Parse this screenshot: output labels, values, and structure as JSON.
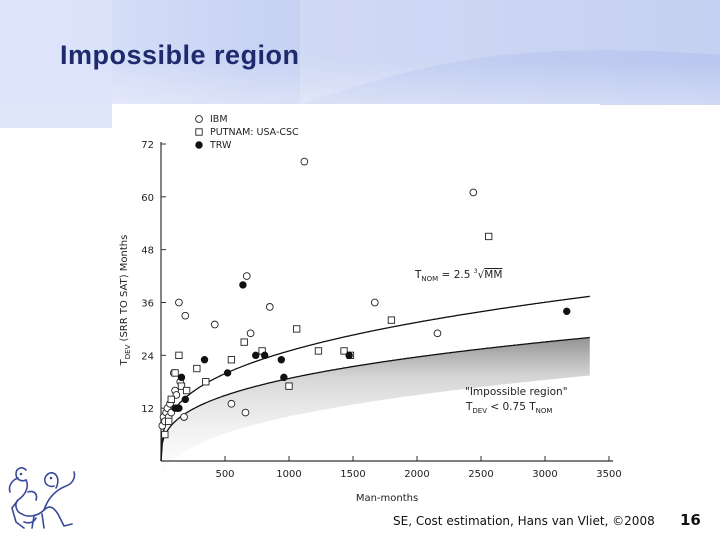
{
  "slide": {
    "title": "Impossible region",
    "footer": "SE, Cost estimation, Hans van Vliet, ©2008",
    "page_number": "16"
  },
  "colors": {
    "title": "#1f2a6d",
    "header_glow": "#c9d3f3",
    "impossible_shading": "#9a9a9a"
  },
  "chart_data": {
    "type": "scatter",
    "title": "",
    "xlabel": "Man-months",
    "ylabel": "T_DEV (SRR TO SAT) Months",
    "xlim": [
      0,
      3500
    ],
    "ylim": [
      0,
      72
    ],
    "xticks": [
      500,
      1000,
      1500,
      2000,
      2500,
      3000,
      3500
    ],
    "yticks": [
      12,
      24,
      36,
      48,
      60,
      72
    ],
    "legend_position": "top-left",
    "series": [
      {
        "name": "IBM",
        "marker": "open-circle",
        "points": [
          [
            10,
            8
          ],
          [
            20,
            10
          ],
          [
            30,
            9
          ],
          [
            40,
            11
          ],
          [
            50,
            12
          ],
          [
            60,
            10
          ],
          [
            70,
            13
          ],
          [
            80,
            11
          ],
          [
            100,
            20
          ],
          [
            110,
            16
          ],
          [
            120,
            15
          ],
          [
            130,
            12
          ],
          [
            150,
            18
          ],
          [
            140,
            36
          ],
          [
            190,
            33
          ],
          [
            180,
            10
          ],
          [
            420,
            31
          ],
          [
            550,
            13
          ],
          [
            660,
            11
          ],
          [
            670,
            42
          ],
          [
            700,
            29
          ],
          [
            850,
            35
          ],
          [
            1120,
            68
          ],
          [
            1670,
            36
          ],
          [
            2160,
            29
          ],
          [
            2440,
            61
          ]
        ]
      },
      {
        "name": "PUTNAM: USA-CSC",
        "marker": "open-square",
        "points": [
          [
            30,
            6
          ],
          [
            60,
            9
          ],
          [
            80,
            14
          ],
          [
            110,
            20
          ],
          [
            140,
            24
          ],
          [
            160,
            17
          ],
          [
            200,
            16
          ],
          [
            280,
            21
          ],
          [
            350,
            18
          ],
          [
            550,
            23
          ],
          [
            650,
            27
          ],
          [
            790,
            25
          ],
          [
            1000,
            17
          ],
          [
            1060,
            30
          ],
          [
            1230,
            25
          ],
          [
            1430,
            25
          ],
          [
            1480,
            24
          ],
          [
            1800,
            32
          ],
          [
            2560,
            51
          ]
        ]
      },
      {
        "name": "TRW",
        "marker": "filled-circle",
        "points": [
          [
            110,
            12
          ],
          [
            140,
            12
          ],
          [
            160,
            19
          ],
          [
            190,
            14
          ],
          [
            340,
            23
          ],
          [
            520,
            20
          ],
          [
            640,
            40
          ],
          [
            740,
            24
          ],
          [
            810,
            24
          ],
          [
            940,
            23
          ],
          [
            960,
            19
          ],
          [
            1470,
            24
          ],
          [
            3170,
            34
          ]
        ]
      }
    ],
    "curves": [
      {
        "name": "T_NOM = 2.5 ∛MM",
        "function": "nominal",
        "coefficient": 2.5,
        "exponent": 0.3333
      },
      {
        "name": "\"Impossible region\" T_DEV < 0.75 T_NOM",
        "function": "impossible-boundary",
        "coefficient": 1.875,
        "exponent": 0.3333,
        "shaded": true
      }
    ],
    "annotations": [
      {
        "text": "T",
        "sub": "NOM",
        "rest": " = 2.5 ",
        "root": "3",
        "radicand": "MM"
      },
      {
        "line1": "\"Impossible region\"",
        "line2_t": "T",
        "line2_sub": "DEV",
        "line2_mid": " < 0.75 T",
        "line2_sub2": "NOM"
      }
    ]
  }
}
